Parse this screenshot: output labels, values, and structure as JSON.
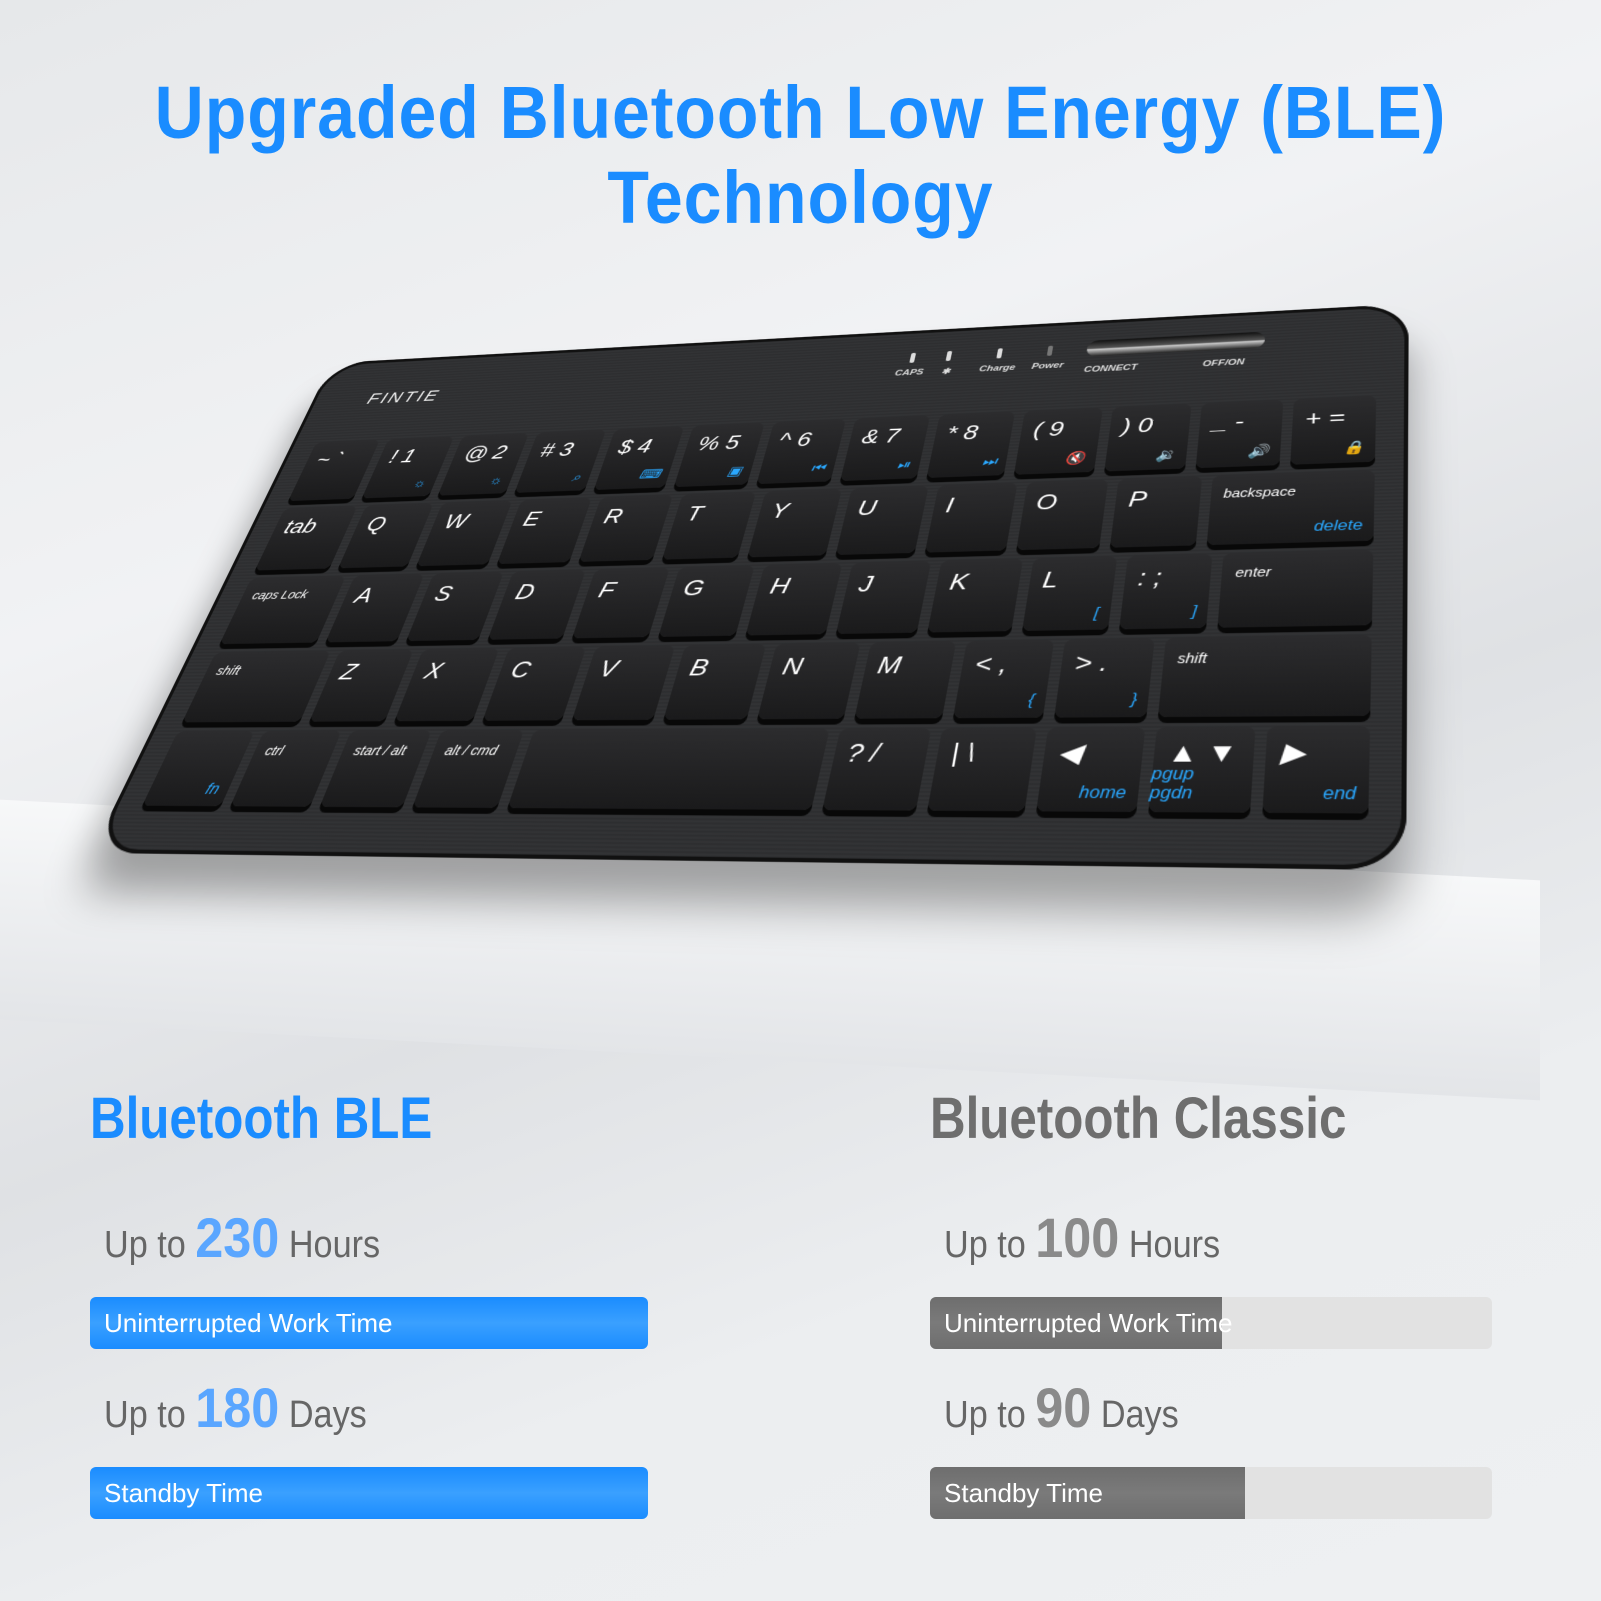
{
  "title": "Upgraded Bluetooth Low Energy (BLE) Technology",
  "keyboard": {
    "brand": "FINTIE",
    "indicators": [
      "CAPS",
      "✱",
      "Charge",
      "Power"
    ],
    "connect": "CONNECT",
    "power": "OFF/ON",
    "rows": [
      [
        {
          "m": "~ `"
        },
        {
          "m": "! 1",
          "s": "☼"
        },
        {
          "m": "@ 2",
          "s": "☼"
        },
        {
          "m": "# 3",
          "s": "⌕"
        },
        {
          "m": "$ 4",
          "s": "⌨"
        },
        {
          "m": "% 5",
          "s": "▣"
        },
        {
          "m": "^ 6",
          "s": "⏮"
        },
        {
          "m": "& 7",
          "s": "⏯"
        },
        {
          "m": "* 8",
          "s": "⏭"
        },
        {
          "m": "( 9",
          "s": "🔇"
        },
        {
          "m": ") 0",
          "s": "🔉"
        },
        {
          "m": "_ -",
          "s": "🔊"
        },
        {
          "m": "+ =",
          "s": "🔒"
        }
      ],
      [
        {
          "m": "tab"
        },
        {
          "m": "Q"
        },
        {
          "m": "W"
        },
        {
          "m": "E"
        },
        {
          "m": "R"
        },
        {
          "m": "T"
        },
        {
          "m": "Y"
        },
        {
          "m": "U"
        },
        {
          "m": "I"
        },
        {
          "m": "O"
        },
        {
          "m": "P"
        },
        {
          "m": "backspace",
          "s": "delete"
        }
      ],
      [
        {
          "m": "caps Lock"
        },
        {
          "m": "A"
        },
        {
          "m": "S"
        },
        {
          "m": "D"
        },
        {
          "m": "F"
        },
        {
          "m": "G"
        },
        {
          "m": "H"
        },
        {
          "m": "J"
        },
        {
          "m": "K"
        },
        {
          "m": "L",
          "s": "["
        },
        {
          "m": ": ;",
          "s": "]"
        },
        {
          "m": "enter"
        }
      ],
      [
        {
          "m": "shift"
        },
        {
          "m": "Z"
        },
        {
          "m": "X"
        },
        {
          "m": "C"
        },
        {
          "m": "V"
        },
        {
          "m": "B"
        },
        {
          "m": "N"
        },
        {
          "m": "M"
        },
        {
          "m": "< ,",
          "s": "{"
        },
        {
          "m": "> .",
          "s": "}"
        },
        {
          "m": "shift"
        }
      ],
      [
        {
          "m": "",
          "s": "fn"
        },
        {
          "m": "ctrl"
        },
        {
          "m": "start / alt"
        },
        {
          "m": "alt / cmd"
        },
        {
          "m": ""
        },
        {
          "m": "? /"
        },
        {
          "m": "| \\"
        },
        {
          "m": "◀",
          "s": "home"
        },
        {
          "m": "▲ ▼",
          "s": "pgup pgdn"
        },
        {
          "m": "▶",
          "s": "end"
        }
      ]
    ]
  },
  "ble": {
    "heading": "Bluetooth BLE",
    "color": "#1a8cff",
    "stats": [
      {
        "prefix": "Up to",
        "value": "230",
        "unit": "Hours",
        "label": "Uninterrupted Work Time",
        "fill": 100
      },
      {
        "prefix": "Up to",
        "value": "180",
        "unit": "Days",
        "label": "Standby Time",
        "fill": 100
      }
    ]
  },
  "classic": {
    "heading": "Bluetooth Classic",
    "color": "#6e6e6e",
    "stats": [
      {
        "prefix": "Up to",
        "value": "100",
        "unit": "Hours",
        "label": "Uninterrupted Work Time",
        "fill": 52
      },
      {
        "prefix": "Up to",
        "value": "90",
        "unit": "Days",
        "label": "Standby Time",
        "fill": 56
      }
    ]
  }
}
